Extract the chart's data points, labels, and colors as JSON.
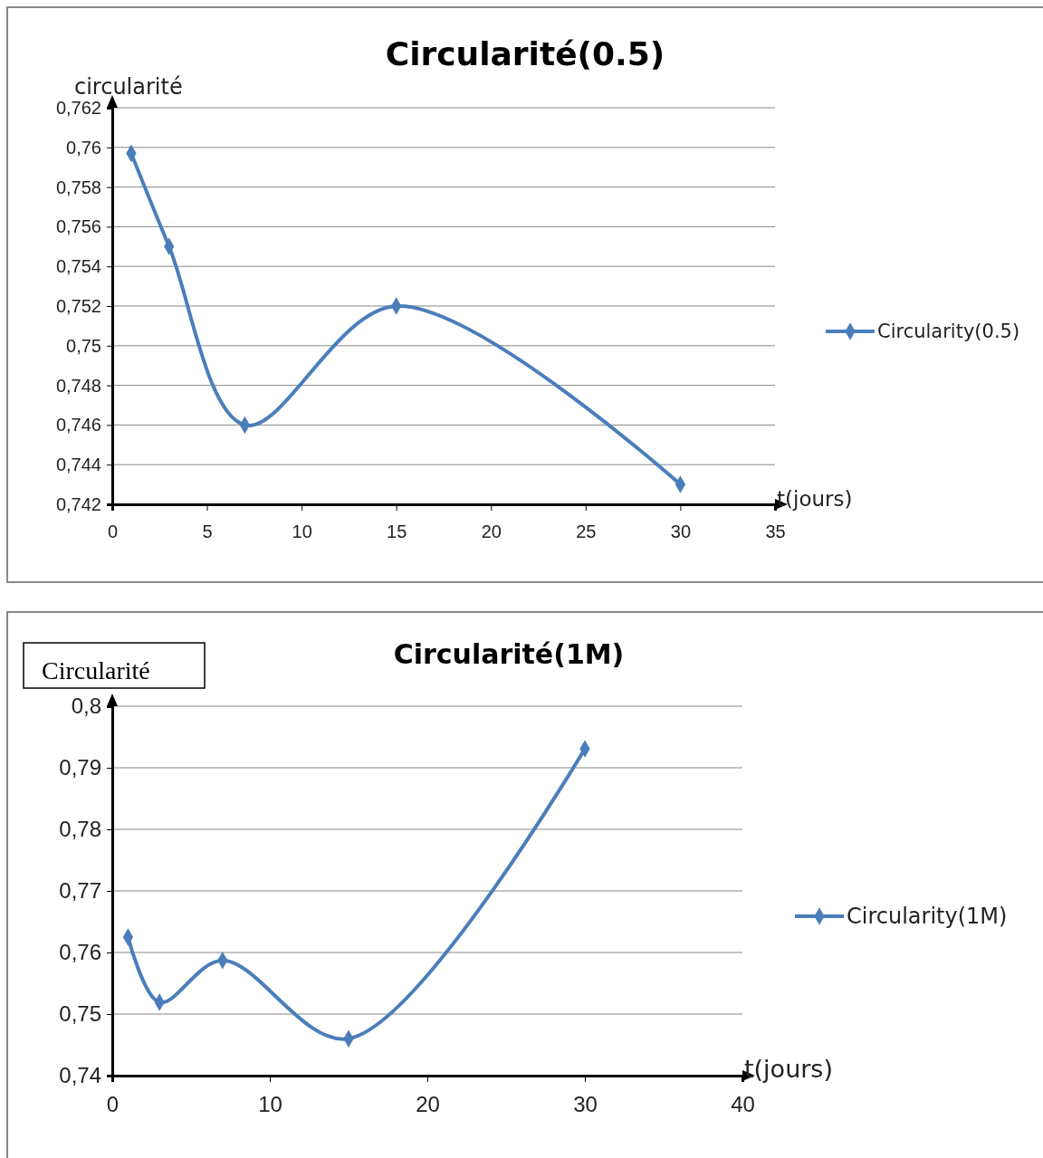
{
  "chart_data": [
    {
      "type": "line",
      "title": "Circularité(0.5)",
      "ylabel": "circularité",
      "xlabel": "t(jours)",
      "x": [
        1,
        3,
        7,
        15,
        30
      ],
      "series": [
        {
          "name": "Circularity(0.5)",
          "color": "#4a7ebb",
          "values": [
            0.7597,
            0.755,
            0.746,
            0.752,
            0.743
          ]
        }
      ],
      "xlim": [
        0,
        35
      ],
      "xticks": [
        0,
        5,
        10,
        15,
        20,
        25,
        30,
        35
      ],
      "ylim": [
        0.742,
        0.762
      ],
      "yticks": [
        {
          "value": 0.742,
          "label": "0,742"
        },
        {
          "value": 0.744,
          "label": "0,744"
        },
        {
          "value": 0.746,
          "label": "0,746"
        },
        {
          "value": 0.748,
          "label": "0,748"
        },
        {
          "value": 0.75,
          "label": "0,75"
        },
        {
          "value": 0.752,
          "label": "0,752"
        },
        {
          "value": 0.754,
          "label": "0,754"
        },
        {
          "value": 0.756,
          "label": "0,756"
        },
        {
          "value": 0.758,
          "label": "0,758"
        },
        {
          "value": 0.76,
          "label": "0,76"
        },
        {
          "value": 0.762,
          "label": "0,762"
        }
      ],
      "grid": "y",
      "legend": "right",
      "marker": "diamond",
      "line_style": "solid"
    },
    {
      "type": "line",
      "title": "Circularité(1M)",
      "ylabel": "Circularité",
      "xlabel": "t(jours)",
      "x": [
        1,
        3,
        7,
        15,
        30
      ],
      "series": [
        {
          "name": "Circularity(1M)",
          "color": "#4a7ebb",
          "values": [
            0.7625,
            0.7519,
            0.7587,
            0.746,
            0.7931
          ]
        }
      ],
      "xlim": [
        0,
        40
      ],
      "xticks": [
        0,
        10,
        20,
        30,
        40
      ],
      "ylim": [
        0.74,
        0.8
      ],
      "yticks": [
        {
          "value": 0.74,
          "label": "0,74"
        },
        {
          "value": 0.75,
          "label": "0,75"
        },
        {
          "value": 0.76,
          "label": "0,76"
        },
        {
          "value": 0.77,
          "label": "0,77"
        },
        {
          "value": 0.78,
          "label": "0,78"
        },
        {
          "value": 0.79,
          "label": "0,79"
        },
        {
          "value": 0.8,
          "label": "0,8"
        }
      ],
      "grid": "y",
      "legend": "right",
      "marker": "diamond",
      "line_style": "solid"
    }
  ]
}
